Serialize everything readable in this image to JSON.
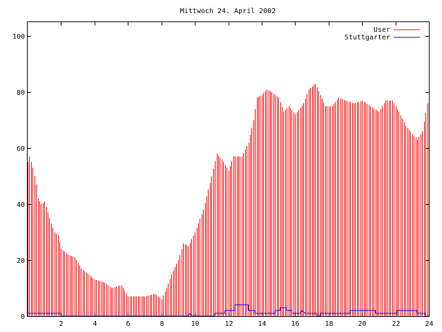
{
  "chart_data": {
    "type": "bar",
    "title": "Mittwoch 24. April 2002",
    "xlabel": "",
    "ylabel": "",
    "xlim": [
      0,
      24
    ],
    "ylim": [
      0,
      105
    ],
    "x_ticks": [
      2,
      4,
      6,
      8,
      10,
      12,
      14,
      16,
      18,
      20,
      22,
      24
    ],
    "y_ticks": [
      0,
      20,
      40,
      60,
      80,
      100
    ],
    "grid": false,
    "legend_position": "top-right",
    "knots": [
      [
        0.0,
        55
      ],
      [
        0.1,
        57
      ],
      [
        0.3,
        53
      ],
      [
        0.5,
        47
      ],
      [
        0.6,
        42
      ],
      [
        0.8,
        40
      ],
      [
        1.0,
        41
      ],
      [
        1.2,
        37
      ],
      [
        1.4,
        33
      ],
      [
        1.6,
        30
      ],
      [
        1.8,
        29
      ],
      [
        2.0,
        24
      ],
      [
        2.4,
        22
      ],
      [
        2.8,
        21
      ],
      [
        3.2,
        17
      ],
      [
        3.6,
        15
      ],
      [
        4.0,
        13
      ],
      [
        4.6,
        12
      ],
      [
        5.0,
        10
      ],
      [
        5.6,
        11
      ],
      [
        6.0,
        7
      ],
      [
        7.0,
        7
      ],
      [
        7.6,
        8
      ],
      [
        8.0,
        6
      ],
      [
        8.3,
        10
      ],
      [
        8.6,
        15
      ],
      [
        9.0,
        20
      ],
      [
        9.3,
        26
      ],
      [
        9.6,
        25
      ],
      [
        10.0,
        30
      ],
      [
        10.5,
        38
      ],
      [
        11.0,
        50
      ],
      [
        11.3,
        58
      ],
      [
        11.6,
        56
      ],
      [
        12.0,
        52
      ],
      [
        12.3,
        57
      ],
      [
        12.8,
        57
      ],
      [
        13.2,
        62
      ],
      [
        13.5,
        70
      ],
      [
        13.7,
        78
      ],
      [
        14.0,
        79
      ],
      [
        14.3,
        81
      ],
      [
        14.6,
        80
      ],
      [
        15.0,
        78
      ],
      [
        15.3,
        73
      ],
      [
        15.6,
        75
      ],
      [
        16.0,
        72
      ],
      [
        16.5,
        76
      ],
      [
        16.8,
        81
      ],
      [
        17.2,
        83
      ],
      [
        17.5,
        79
      ],
      [
        17.8,
        75
      ],
      [
        18.2,
        75
      ],
      [
        18.6,
        78
      ],
      [
        19.0,
        77
      ],
      [
        19.5,
        76
      ],
      [
        20.0,
        77
      ],
      [
        20.5,
        75
      ],
      [
        21.0,
        73
      ],
      [
        21.4,
        77
      ],
      [
        21.8,
        77
      ],
      [
        22.2,
        73
      ],
      [
        22.6,
        68
      ],
      [
        23.0,
        65
      ],
      [
        23.3,
        63
      ],
      [
        23.6,
        66
      ],
      [
        23.9,
        76
      ],
      [
        24.0,
        72
      ]
    ],
    "series": [
      {
        "name": "User",
        "color": "#ff0000",
        "style": "impulses",
        "step": 0.1
      },
      {
        "name": "Stuttgarter",
        "color": "#0000ff",
        "style": "steps",
        "points": [
          [
            0.0,
            1
          ],
          [
            2.0,
            1
          ],
          [
            2.0,
            0
          ],
          [
            9.6,
            0
          ],
          [
            9.7,
            1
          ],
          [
            9.85,
            0
          ],
          [
            11.2,
            0
          ],
          [
            11.2,
            1
          ],
          [
            11.8,
            1
          ],
          [
            11.8,
            2
          ],
          [
            12.4,
            2
          ],
          [
            12.4,
            4
          ],
          [
            13.2,
            4
          ],
          [
            13.2,
            2
          ],
          [
            13.6,
            2
          ],
          [
            13.6,
            1
          ],
          [
            14.8,
            1
          ],
          [
            14.8,
            2
          ],
          [
            15.1,
            2
          ],
          [
            15.1,
            3
          ],
          [
            15.5,
            3
          ],
          [
            15.5,
            2
          ],
          [
            15.8,
            2
          ],
          [
            15.8,
            1
          ],
          [
            16.3,
            1
          ],
          [
            16.4,
            2
          ],
          [
            16.6,
            1
          ],
          [
            17.3,
            1
          ],
          [
            17.3,
            0
          ],
          [
            17.5,
            0
          ],
          [
            17.5,
            1
          ],
          [
            19.3,
            1
          ],
          [
            19.3,
            2
          ],
          [
            20.8,
            2
          ],
          [
            20.8,
            1
          ],
          [
            22.1,
            1
          ],
          [
            22.1,
            2
          ],
          [
            23.3,
            2
          ],
          [
            23.3,
            1
          ],
          [
            23.8,
            1
          ],
          [
            23.8,
            0
          ],
          [
            24.0,
            0
          ]
        ]
      }
    ]
  }
}
